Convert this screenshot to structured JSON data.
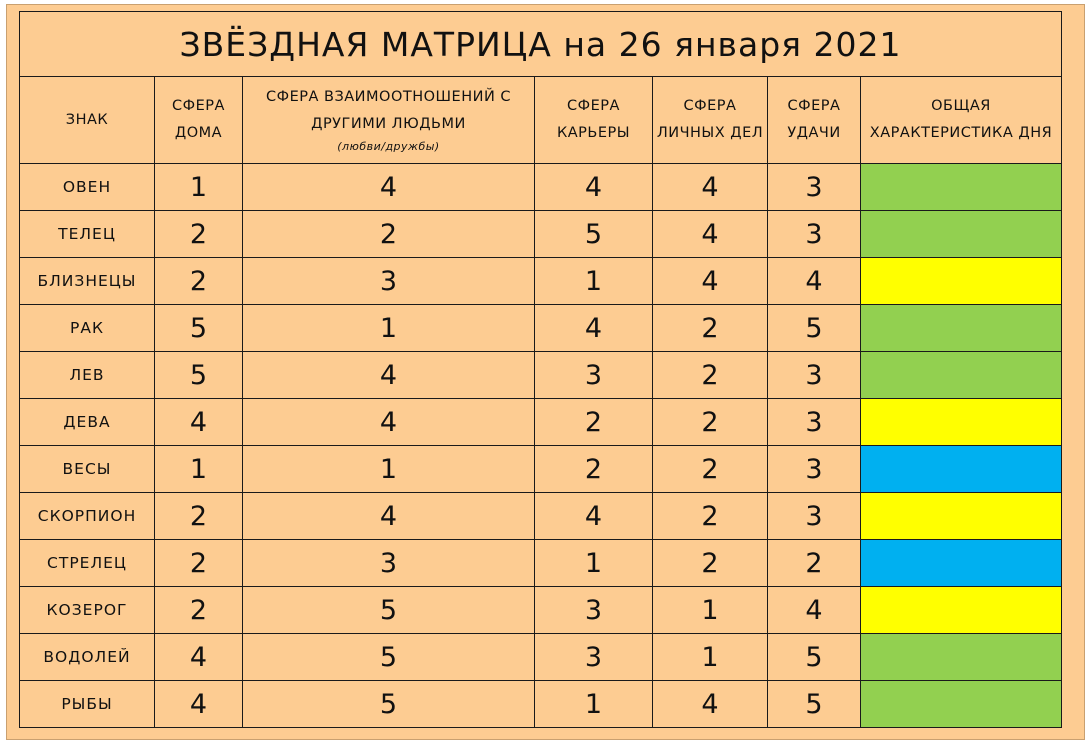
{
  "title": "ЗВЁЗДНАЯ МАТРИЦА на 26 января 2021",
  "headers": {
    "sign": "ЗНАК",
    "home": "СФЕРА ДОМА",
    "relations": "СФЕРА ВЗАИМООТНОШЕНИЙ С ДРУГИМИ ЛЮДЬМИ",
    "relations_sub": "(любви/дружбы)",
    "career": "СФЕРА КАРЬЕРЫ",
    "personal": "СФЕРА ЛИЧНЫХ ДЕЛ",
    "luck": "СФЕРА УДАЧИ",
    "day": "ОБЩАЯ ХАРАКТЕРИСТИКА ДНЯ"
  },
  "day_colors": {
    "green": "#92d050",
    "yellow": "#ffff00",
    "blue": "#00b0f0"
  },
  "rows": [
    {
      "sign": "ОВЕН",
      "home": "1",
      "relations": "4",
      "career": "4",
      "personal": "4",
      "luck": "3",
      "day": "green"
    },
    {
      "sign": "ТЕЛЕЦ",
      "home": "2",
      "relations": "2",
      "career": "5",
      "personal": "4",
      "luck": "3",
      "day": "green"
    },
    {
      "sign": "БЛИЗНЕЦЫ",
      "home": "2",
      "relations": "3",
      "career": "1",
      "personal": "4",
      "luck": "4",
      "day": "yellow"
    },
    {
      "sign": "РАК",
      "home": "5",
      "relations": "1",
      "career": "4",
      "personal": "2",
      "luck": "5",
      "day": "green"
    },
    {
      "sign": "ЛЕВ",
      "home": "5",
      "relations": "4",
      "career": "3",
      "personal": "2",
      "luck": "3",
      "day": "green"
    },
    {
      "sign": "ДЕВА",
      "home": "4",
      "relations": "4",
      "career": "2",
      "personal": "2",
      "luck": "3",
      "day": "yellow"
    },
    {
      "sign": "ВЕСЫ",
      "home": "1",
      "relations": "1",
      "career": "2",
      "personal": "2",
      "luck": "3",
      "day": "blue"
    },
    {
      "sign": "СКОРПИОН",
      "home": "2",
      "relations": "4",
      "career": "4",
      "personal": "2",
      "luck": "3",
      "day": "yellow"
    },
    {
      "sign": "СТРЕЛЕЦ",
      "home": "2",
      "relations": "3",
      "career": "1",
      "personal": "2",
      "luck": "2",
      "day": "blue"
    },
    {
      "sign": "КОЗЕРОГ",
      "home": "2",
      "relations": "5",
      "career": "3",
      "personal": "1",
      "luck": "4",
      "day": "yellow"
    },
    {
      "sign": "ВОДОЛЕЙ",
      "home": "4",
      "relations": "5",
      "career": "3",
      "personal": "1",
      "luck": "5",
      "day": "green"
    },
    {
      "sign": "РЫБЫ",
      "home": "4",
      "relations": "5",
      "career": "1",
      "personal": "4",
      "luck": "5",
      "day": "green"
    }
  ]
}
